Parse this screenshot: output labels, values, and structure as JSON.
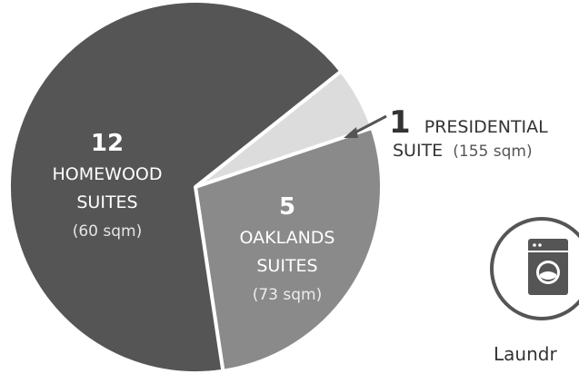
{
  "chart_data": {
    "type": "pie",
    "slices": [
      {
        "count": "12",
        "name_lines": [
          "HOMEWOOD",
          "SUITES"
        ],
        "size": "(60 sqm)",
        "value": 12,
        "color": "#555555"
      },
      {
        "count": "5",
        "name_lines": [
          "OAKLANDS",
          "SUITES"
        ],
        "size": "(73 sqm)",
        "value": 5,
        "color": "#8a8a8a"
      },
      {
        "count": "1",
        "name_lines": [
          "PRESIDENTIAL",
          "SUITE"
        ],
        "size": "(155 sqm)",
        "value": 1,
        "color": "#dcdcdc"
      }
    ],
    "legend": "none"
  },
  "laundry": {
    "label": "Laundr",
    "icon": "washing-machine-icon",
    "colors": {
      "ring": "#555555",
      "icon": "#555555"
    }
  }
}
